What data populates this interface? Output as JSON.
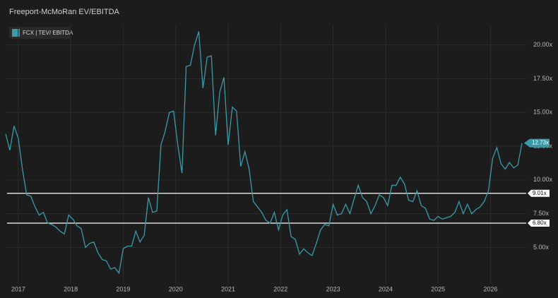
{
  "chart_data": {
    "type": "line",
    "title": "Freeport-McMoRan EV/EBITDA",
    "x": [
      2016.76,
      2016.84,
      2016.92,
      2017.0,
      2017.08,
      2017.16,
      2017.24,
      2017.32,
      2017.4,
      2017.48,
      2017.56,
      2017.64,
      2017.72,
      2017.8,
      2017.88,
      2017.96,
      2018.04,
      2018.12,
      2018.2,
      2018.28,
      2018.36,
      2018.44,
      2018.52,
      2018.6,
      2018.68,
      2018.76,
      2018.84,
      2018.92,
      2019.0,
      2019.08,
      2019.16,
      2019.24,
      2019.32,
      2019.4,
      2019.48,
      2019.56,
      2019.64,
      2019.72,
      2019.8,
      2019.88,
      2019.96,
      2020.04,
      2020.12,
      2020.2,
      2020.28,
      2020.36,
      2020.44,
      2020.52,
      2020.6,
      2020.68,
      2020.76,
      2020.84,
      2020.92,
      2021.0,
      2021.08,
      2021.16,
      2021.24,
      2021.32,
      2021.4,
      2021.48,
      2021.56,
      2021.64,
      2021.72,
      2021.8,
      2021.88,
      2021.96,
      2022.04,
      2022.12,
      2022.2,
      2022.28,
      2022.36,
      2022.44,
      2022.52,
      2022.6,
      2022.68,
      2022.76,
      2022.84,
      2022.92,
      2023.0,
      2023.08,
      2023.16,
      2023.24,
      2023.32,
      2023.4,
      2023.48,
      2023.56,
      2023.64,
      2023.72,
      2023.8,
      2023.88,
      2023.96,
      2024.04,
      2024.12,
      2024.2,
      2024.28,
      2024.36,
      2024.44,
      2024.52,
      2024.6,
      2024.68,
      2024.76,
      2024.84,
      2024.92,
      2025.0,
      2025.08,
      2025.16,
      2025.24,
      2025.32,
      2025.4,
      2025.48,
      2025.56,
      2025.64,
      2025.72,
      2025.8,
      2025.88,
      2025.96,
      2026.04,
      2026.12,
      2026.2,
      2026.28,
      2026.36,
      2026.44,
      2026.52,
      2026.6
    ],
    "series": [
      {
        "name": "FCX | TEV/ EBITDA",
        "color": "#3a9aa8",
        "values": [
          13.4,
          12.2,
          14.0,
          13.1,
          10.8,
          8.9,
          8.8,
          8.0,
          7.4,
          7.6,
          6.8,
          6.7,
          6.5,
          6.2,
          6.0,
          7.4,
          7.1,
          6.6,
          6.4,
          5.0,
          5.3,
          5.4,
          4.6,
          4.1,
          4.0,
          3.4,
          3.5,
          3.1,
          4.9,
          5.1,
          5.1,
          6.2,
          5.4,
          5.9,
          8.7,
          7.6,
          7.7,
          12.6,
          13.6,
          15.0,
          15.1,
          12.6,
          10.5,
          18.4,
          18.5,
          20.0,
          21.0,
          16.8,
          19.1,
          19.2,
          13.3,
          16.5,
          17.6,
          12.6,
          15.4,
          15.1,
          11.0,
          12.1,
          10.8,
          8.4,
          8.0,
          7.6,
          7.0,
          6.8,
          7.6,
          6.3,
          7.4,
          7.8,
          5.8,
          5.6,
          4.5,
          4.9,
          4.6,
          4.4,
          5.3,
          6.3,
          6.7,
          6.6,
          8.2,
          7.4,
          7.5,
          8.2,
          7.5,
          8.6,
          9.6,
          8.7,
          8.4,
          7.5,
          8.1,
          8.9,
          8.7,
          8.1,
          9.6,
          9.6,
          10.2,
          9.7,
          8.5,
          8.4,
          9.2,
          8.1,
          7.9,
          7.1,
          7.0,
          7.3,
          7.1,
          7.2,
          7.3,
          7.6,
          8.4,
          7.5,
          8.2,
          7.5,
          7.8,
          8.0,
          8.4,
          9.2,
          11.6,
          12.4,
          11.2,
          10.8,
          11.3,
          10.9,
          11.1,
          12.73
        ]
      }
    ],
    "xlim": [
      2016.76,
      2026.68
    ],
    "xticks": [
      2017,
      2018,
      2019,
      2020,
      2021,
      2022,
      2023,
      2024,
      2025,
      2026
    ],
    "ylim": [
      2.3,
      21.5
    ],
    "yticks": [
      {
        "value": 5,
        "label": "5.00x"
      },
      {
        "value": 7.5,
        "label": "7.50x"
      },
      {
        "value": 10,
        "label": "10.00x"
      },
      {
        "value": 12.5,
        "label": "12.50x"
      },
      {
        "value": 15,
        "label": "15.00x"
      },
      {
        "value": 17.5,
        "label": "17.50x"
      },
      {
        "value": 20,
        "label": "20.00x"
      }
    ],
    "grid": true,
    "reference_lines": [
      {
        "value": 9.01,
        "label": "9.01x"
      },
      {
        "value": 6.8,
        "label": "6.80x"
      }
    ],
    "last_value": {
      "value": 12.73,
      "label": "12.73x"
    }
  }
}
